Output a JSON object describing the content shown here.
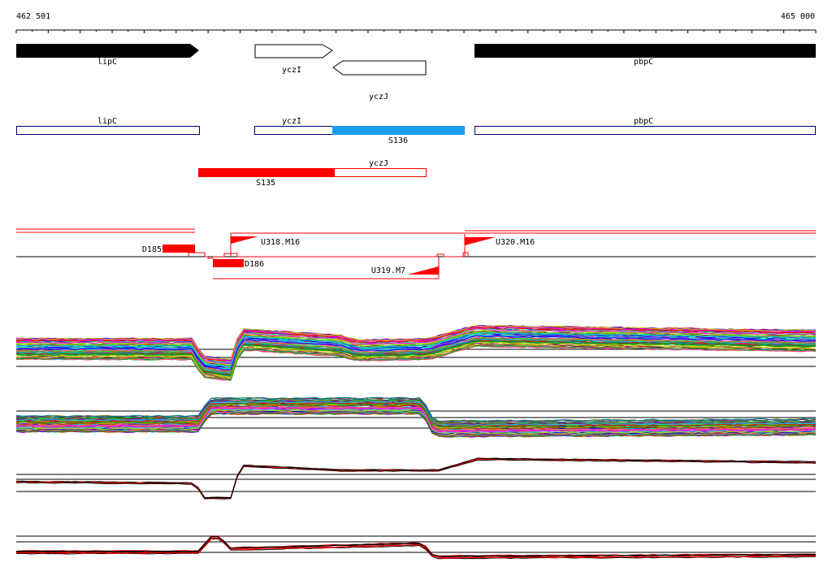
{
  "ruler": {
    "start_label": "462 501",
    "end_label": "465 000"
  },
  "genes": [
    {
      "name": "lipC",
      "strand": "+",
      "style": "filled"
    },
    {
      "name": "yczI",
      "strand": "+",
      "style": "outline"
    },
    {
      "name": "yczJ",
      "strand": "-",
      "style": "outline"
    },
    {
      "name": "pbpC",
      "strand": "+",
      "style": "filled"
    }
  ],
  "transcripts": [
    {
      "name": "lipC",
      "color": "#000080"
    },
    {
      "name": "yczI",
      "color": "#000080"
    },
    {
      "name": "S136",
      "color": "#1a9cf0"
    },
    {
      "name": "pbpC",
      "color": "#000080"
    },
    {
      "name": "yczJ",
      "color": "#ff0000"
    },
    {
      "name": "S135",
      "color": "#ff0000"
    }
  ],
  "segments": [
    "D185",
    "D186",
    "U318.M16",
    "U319.M7",
    "U320.M16"
  ],
  "colors": {
    "accent": "#ff0000",
    "transcript": "#000080",
    "highlight": "#1a9cf0",
    "gene": "#000000"
  },
  "profile_panels": 4
}
